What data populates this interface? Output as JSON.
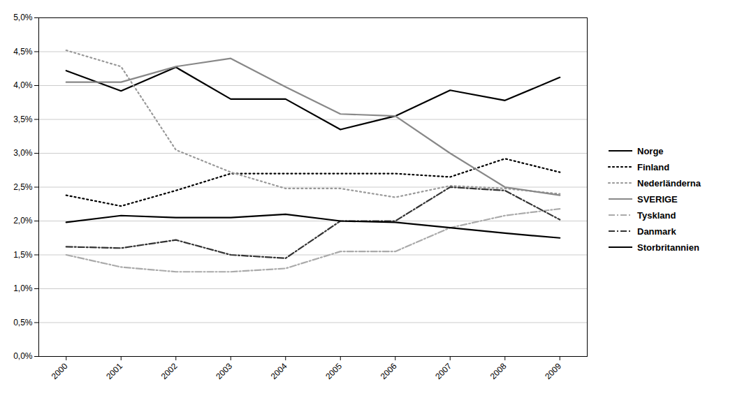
{
  "chart_data": {
    "type": "line",
    "x": [
      2000,
      2001,
      2002,
      2003,
      2004,
      2005,
      2006,
      2007,
      2008,
      2009
    ],
    "series": [
      {
        "name": "Norge",
        "color": "#000000",
        "line_style": "solid",
        "values": [
          4.22,
          3.92,
          4.27,
          3.8,
          3.8,
          3.35,
          3.55,
          3.93,
          3.78,
          4.12
        ]
      },
      {
        "name": "Finland",
        "color": "#000000",
        "line_style": "dotted",
        "values": [
          2.38,
          2.22,
          2.45,
          2.7,
          2.7,
          2.7,
          2.7,
          2.65,
          2.92,
          2.72
        ]
      },
      {
        "name": "Nederländerna",
        "color": "#999999",
        "line_style": "dotted",
        "values": [
          4.52,
          4.28,
          3.05,
          2.72,
          2.48,
          2.48,
          2.35,
          2.52,
          2.48,
          2.4
        ]
      },
      {
        "name": "SVERIGE",
        "color": "#888888",
        "line_style": "solid",
        "values": [
          4.05,
          4.05,
          4.28,
          4.4,
          3.98,
          3.58,
          3.55,
          3.0,
          2.5,
          2.38
        ]
      },
      {
        "name": "Tyskland",
        "color": "#aaaaaa",
        "line_style": "dashdot",
        "values": [
          1.5,
          1.32,
          1.25,
          1.25,
          1.3,
          1.55,
          1.55,
          1.9,
          2.08,
          2.18
        ]
      },
      {
        "name": "Danmark",
        "color": "#333333",
        "line_style": "dashdot",
        "values": [
          1.62,
          1.6,
          1.72,
          1.5,
          1.45,
          2.0,
          2.0,
          2.5,
          2.45,
          2.02
        ]
      },
      {
        "name": "Storbritannien",
        "color": "#000000",
        "line_style": "solid",
        "values": [
          1.98,
          2.08,
          2.05,
          2.05,
          2.1,
          2.0,
          1.98,
          1.9,
          1.82,
          1.75
        ]
      }
    ],
    "xlim": [
      1999.5,
      2009.5
    ],
    "xticks": [
      2000,
      2001,
      2002,
      2003,
      2004,
      2005,
      2006,
      2007,
      2008,
      2009
    ],
    "ylim": [
      0.0,
      5.0
    ],
    "yticks": [
      {
        "value": 0.0,
        "label": "0,0%"
      },
      {
        "value": 0.5,
        "label": "0,5%"
      },
      {
        "value": 1.0,
        "label": "1,0%"
      },
      {
        "value": 1.5,
        "label": "1,5%"
      },
      {
        "value": 2.0,
        "label": "2,0%"
      },
      {
        "value": 2.5,
        "label": "2,5%"
      },
      {
        "value": 3.0,
        "label": "3,0%"
      },
      {
        "value": 3.5,
        "label": "3,5%"
      },
      {
        "value": 4.0,
        "label": "4,0%"
      },
      {
        "value": 4.5,
        "label": "4,5%"
      },
      {
        "value": 5.0,
        "label": "5,0%"
      }
    ],
    "grid": "y",
    "legend": "right"
  }
}
